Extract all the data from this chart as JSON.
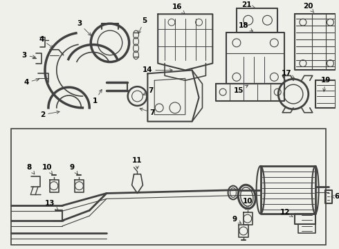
{
  "bg_color": "#f0f0ea",
  "line_color": "#404040",
  "fig_width": 4.9,
  "fig_height": 3.6,
  "dpi": 100
}
